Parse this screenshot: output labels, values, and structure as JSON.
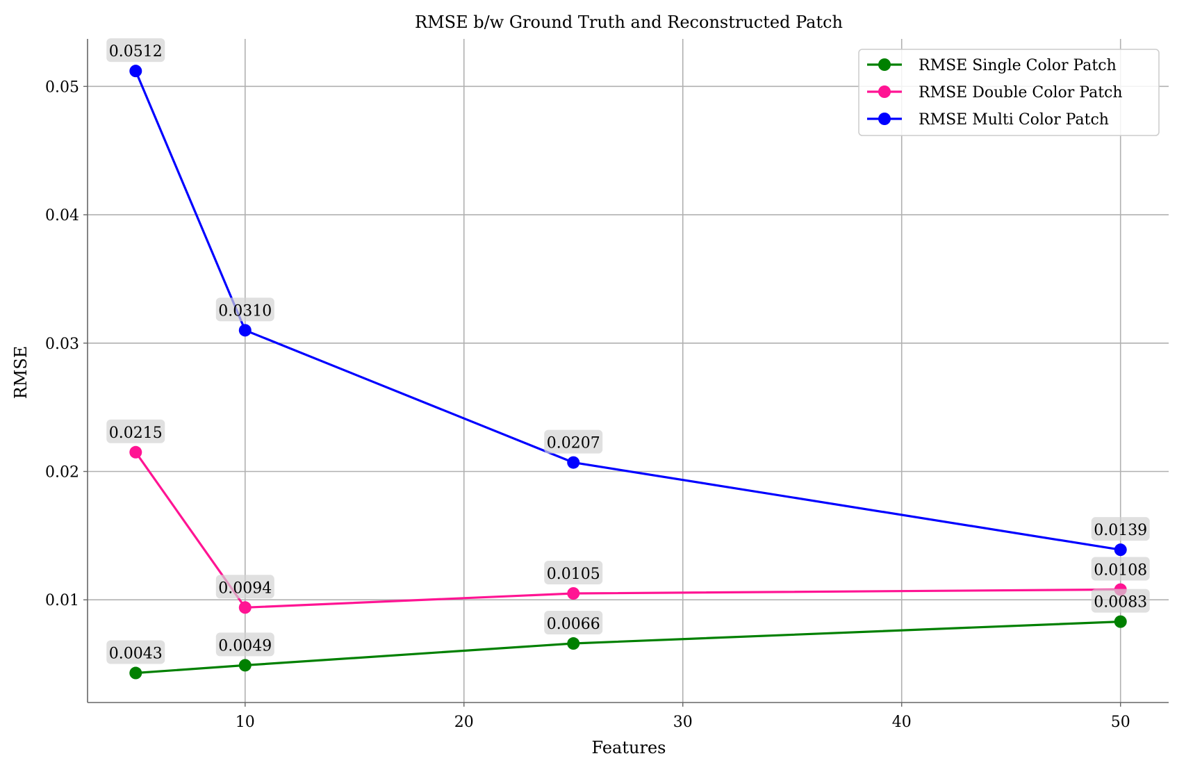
{
  "chart_data": {
    "type": "line",
    "title": "RMSE b/w Ground Truth and Reconstructed Patch",
    "xlabel": "Features",
    "ylabel": "RMSE",
    "x": [
      5,
      10,
      25,
      50
    ],
    "xlim": [
      2.8,
      52.2
    ],
    "ylim": [
      0.002,
      0.0537
    ],
    "xticks": [
      10,
      20,
      30,
      40,
      50
    ],
    "xtick_labels": [
      "10",
      "20",
      "30",
      "40",
      "50"
    ],
    "yticks": [
      0.01,
      0.02,
      0.03,
      0.04,
      0.05
    ],
    "ytick_labels": [
      "0.01",
      "0.02",
      "0.03",
      "0.04",
      "0.05"
    ],
    "grid": true,
    "legend_position": "top-right",
    "series": [
      {
        "name": "RMSE Single Color Patch",
        "color": "#008000",
        "values": [
          0.0043,
          0.0049,
          0.0066,
          0.0083
        ],
        "labels": [
          "0.0043",
          "0.0049",
          "0.0066",
          "0.0083"
        ]
      },
      {
        "name": "RMSE Double Color Patch",
        "color": "#ff1493",
        "values": [
          0.0215,
          0.0094,
          0.0105,
          0.0108
        ],
        "labels": [
          "0.0215",
          "0.0094",
          "0.0105",
          "0.0108"
        ]
      },
      {
        "name": "RMSE Multi Color Patch",
        "color": "#0000ff",
        "values": [
          0.0512,
          0.031,
          0.0207,
          0.0139
        ],
        "labels": [
          "0.0512",
          "0.0310",
          "0.0207",
          "0.0139"
        ]
      }
    ]
  }
}
